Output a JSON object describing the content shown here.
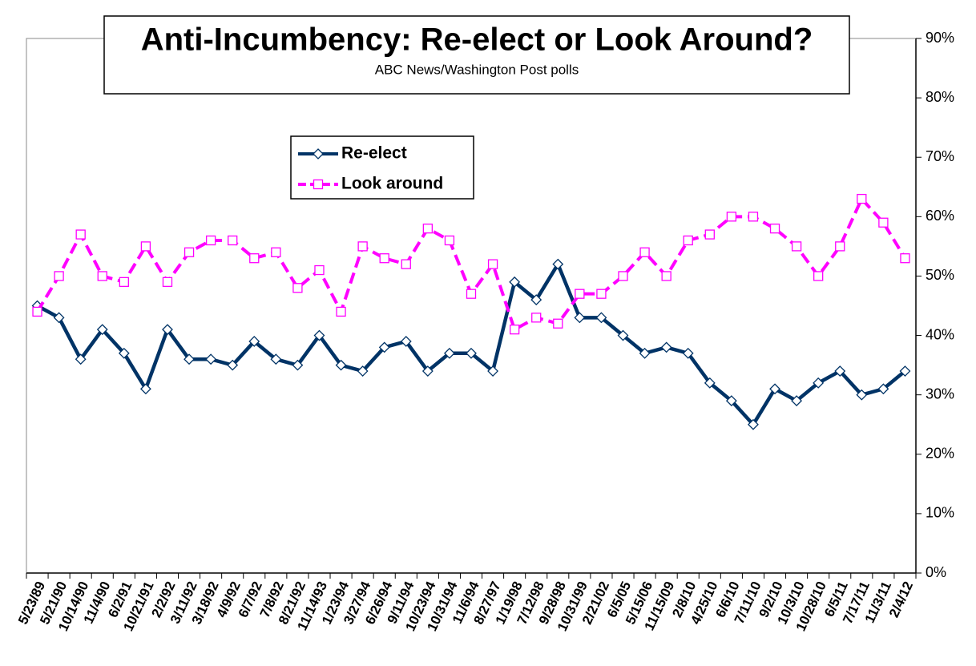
{
  "chart_data": {
    "type": "line",
    "title": "Anti-Incumbency: Re-elect or Look Around?",
    "subtitle": "ABC News/Washington Post polls",
    "categories": [
      "5/23/89",
      "5/21/90",
      "10/14/90",
      "11/4/90",
      "6/2/91",
      "10/21/91",
      "2/2/92",
      "3/11/92",
      "3/18/92",
      "4/9/92",
      "6/7/92",
      "7/8/92",
      "8/21/92",
      "11/14/93",
      "1/23/94",
      "3/27/94",
      "6/26/94",
      "9/11/94",
      "10/23/94",
      "10/31/94",
      "11/6/94",
      "8/27/97",
      "1/19/98",
      "7/12/98",
      "9/28/98",
      "10/31/99",
      "2/21/02",
      "6/5/05",
      "5/15/06",
      "11/15/09",
      "2/8/10",
      "4/25/10",
      "6/6/10",
      "7/11/10",
      "9/2/10",
      "10/3/10",
      "10/28/10",
      "6/5/11",
      "7/17/11",
      "11/3/11",
      "2/4/12"
    ],
    "series": [
      {
        "name": "Re-elect",
        "color": "#003366",
        "marker": "diamond",
        "dashed": false,
        "values": [
          45,
          43,
          36,
          41,
          37,
          31,
          41,
          36,
          36,
          35,
          39,
          36,
          35,
          40,
          35,
          34,
          38,
          39,
          34,
          37,
          37,
          34,
          49,
          46,
          52,
          43,
          43,
          40,
          37,
          38,
          37,
          32,
          29,
          25,
          31,
          29,
          32,
          34,
          30,
          31,
          34
        ]
      },
      {
        "name": "Look around",
        "color": "#ff00ff",
        "marker": "square",
        "dashed": true,
        "values": [
          44,
          50,
          57,
          50,
          49,
          55,
          49,
          54,
          56,
          56,
          53,
          54,
          48,
          51,
          44,
          55,
          53,
          52,
          58,
          56,
          47,
          52,
          41,
          43,
          42,
          47,
          47,
          50,
          54,
          50,
          56,
          57,
          60,
          60,
          58,
          55,
          50,
          55,
          63,
          59,
          53
        ]
      }
    ],
    "ylim": [
      0,
      90
    ],
    "yticks": [
      {
        "value": 0,
        "label": "0%"
      },
      {
        "value": 10,
        "label": "10%"
      },
      {
        "value": 20,
        "label": "20%"
      },
      {
        "value": 30,
        "label": "30%"
      },
      {
        "value": 40,
        "label": "40%"
      },
      {
        "value": 50,
        "label": "50%"
      },
      {
        "value": 60,
        "label": "60%"
      },
      {
        "value": 70,
        "label": "70%"
      },
      {
        "value": 80,
        "label": "80%"
      },
      {
        "value": 90,
        "label": "90%"
      }
    ],
    "y_axis_side": "right",
    "grid": false
  }
}
